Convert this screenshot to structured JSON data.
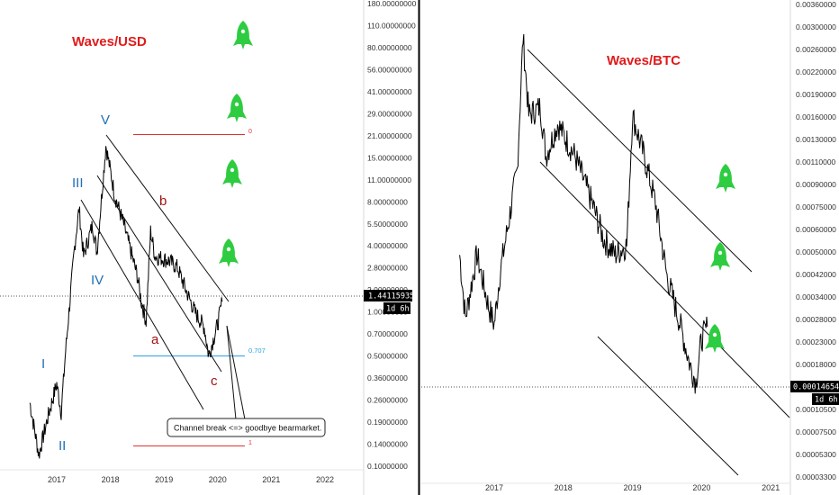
{
  "panels": [
    {
      "title": "Waves/USD",
      "price_tag": "1.44115935",
      "interval_tag": "1d 6h",
      "y_ticks": [
        "180.00000000",
        "110.00000000",
        "80.00000000",
        "56.00000000",
        "41.00000000",
        "29.00000000",
        "21.00000000",
        "15.00000000",
        "11.00000000",
        "8.00000000",
        "5.50000000",
        "4.00000000",
        "2.80000000",
        "2.00000000",
        "1.00000000",
        "0.70000000",
        "0.50000000",
        "0.36000000",
        "0.26000000",
        "0.19000000",
        "0.14000000",
        "0.10000000"
      ],
      "x_ticks": [
        "2017",
        "2018",
        "2019",
        "2020",
        "2021",
        "2022"
      ],
      "wave_labels": [
        "V",
        "III",
        "IV",
        "I",
        "II"
      ],
      "corr_labels": [
        "b",
        "a",
        "c"
      ],
      "fib_labels": [
        "0",
        "0.707",
        "1"
      ],
      "note": "Channel break <=> goodbye bearmarket."
    },
    {
      "title": "Waves/BTC",
      "price_tag": "0.00014654",
      "interval_tag": "1d 6h",
      "y_ticks": [
        "0.00360000",
        "0.00300000",
        "0.00260000",
        "0.00220000",
        "0.00190000",
        "0.00160000",
        "0.00130000",
        "0.00110000",
        "0.00090000",
        "0.00075000",
        "0.00060000",
        "0.00050000",
        "0.00042000",
        "0.00034000",
        "0.00028000",
        "0.00023000",
        "0.00018000",
        "0.00014000",
        "0.00010500",
        "0.00007500",
        "0.00005300",
        "0.00003300"
      ],
      "x_ticks": [
        "2017",
        "2018",
        "2019",
        "2020",
        "2021"
      ]
    }
  ],
  "icons": [
    "rocket-icon"
  ],
  "colors": {
    "rocket": "#2ecc40",
    "title": "#e01b1b",
    "wave_blue": "#1f6fb5",
    "wave_red": "#a11212",
    "fib": "#e03030",
    "fib_707": "#29a3e0"
  },
  "chart_data": [
    {
      "type": "line",
      "title": "Waves/USD",
      "scale": "log",
      "x_range": [
        "2016-07",
        "2022-07"
      ],
      "series": [
        {
          "points": [
            [
              "2016-07",
              0.28
            ],
            [
              "2016-09",
              0.12
            ],
            [
              "2016-11",
              0.22
            ],
            [
              "2017-01",
              0.38
            ],
            [
              "2017-02",
              0.24
            ],
            [
              "2017-03",
              0.65
            ],
            [
              "2017-05",
              3.5
            ],
            [
              "2017-06",
              6.5
            ],
            [
              "2017-07",
              3.0
            ],
            [
              "2017-09",
              5.0
            ],
            [
              "2017-10",
              3.2
            ],
            [
              "2017-12",
              18.0
            ],
            [
              "2018-01",
              12.0
            ],
            [
              "2018-02",
              8.0
            ],
            [
              "2018-04",
              5.0
            ],
            [
              "2018-07",
              2.2
            ],
            [
              "2018-08",
              1.4
            ],
            [
              "2018-09",
              1.05
            ],
            [
              "2018-10",
              4.5
            ],
            [
              "2018-11",
              3.0
            ],
            [
              "2019-02",
              2.8
            ],
            [
              "2019-04",
              2.5
            ],
            [
              "2019-06",
              1.7
            ],
            [
              "2019-08",
              1.2
            ],
            [
              "2019-10",
              0.95
            ],
            [
              "2019-11",
              0.6
            ],
            [
              "2020-01",
              1.0
            ],
            [
              "2020-02",
              1.44
            ]
          ]
        }
      ],
      "last_value": 1.44115935
    },
    {
      "type": "line",
      "title": "Waves/BTC",
      "scale": "log",
      "x_range": [
        "2016-07",
        "2021-04"
      ],
      "series": [
        {
          "points": [
            [
              "2016-07",
              0.0003
            ],
            [
              "2016-08",
              0.00016
            ],
            [
              "2016-10",
              0.0003
            ],
            [
              "2016-12",
              0.00018
            ],
            [
              "2017-01",
              0.00015
            ],
            [
              "2017-02",
              0.00025
            ],
            [
              "2017-03",
              0.00035
            ],
            [
              "2017-05",
              0.0007
            ],
            [
              "2017-06",
              0.0026
            ],
            [
              "2017-07",
              0.0012
            ],
            [
              "2017-09",
              0.0013
            ],
            [
              "2017-10",
              0.0008
            ],
            [
              "2017-12",
              0.0011
            ],
            [
              "2018-03",
              0.0008
            ],
            [
              "2018-06",
              0.0005
            ],
            [
              "2018-08",
              0.00035
            ],
            [
              "2018-10",
              0.0003
            ],
            [
              "2018-12",
              0.00033
            ],
            [
              "2019-01",
              0.0012
            ],
            [
              "2019-03",
              0.0008
            ],
            [
              "2019-05",
              0.0005
            ],
            [
              "2019-07",
              0.00024
            ],
            [
              "2019-09",
              0.00016
            ],
            [
              "2019-11",
              0.0001
            ],
            [
              "2019-12",
              8.5e-05
            ],
            [
              "2020-01",
              0.00013
            ],
            [
              "2020-02",
              0.00014654
            ]
          ]
        }
      ],
      "last_value": 0.00014654
    }
  ]
}
